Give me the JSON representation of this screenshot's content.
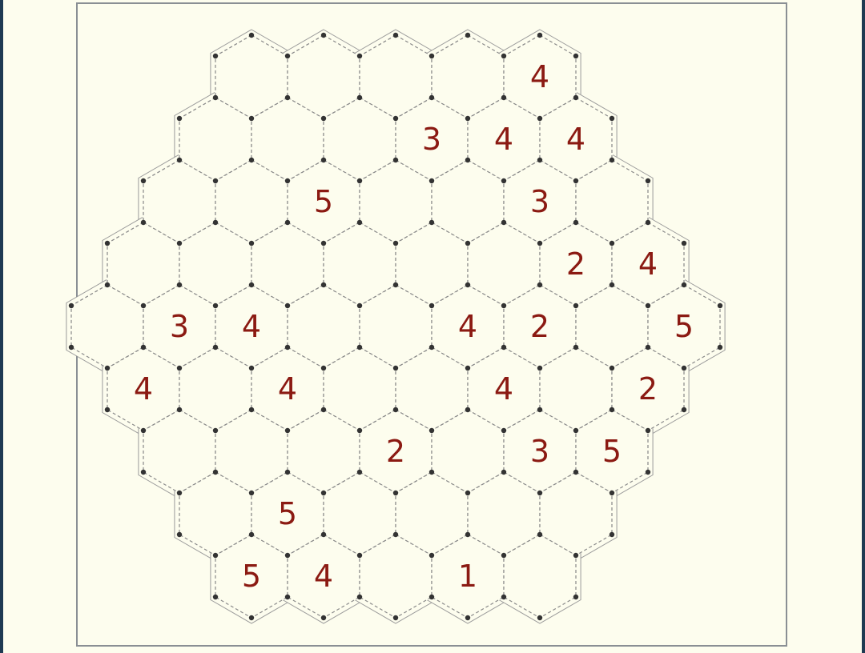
{
  "puzzle": {
    "colors": {
      "background": "#fdfdee",
      "outer_border": "#8a8f94",
      "cell_outline": "#888888",
      "vertex_dot": "#333333",
      "clue_text": "#8b1a12"
    },
    "rows": [
      {
        "offset": 2,
        "cells": [
          "",
          "",
          "",
          "",
          "4"
        ]
      },
      {
        "offset": 1.5,
        "cells": [
          "",
          "",
          "",
          "3",
          "4",
          "4"
        ]
      },
      {
        "offset": 1,
        "cells": [
          "",
          "",
          "5",
          "",
          "",
          "3",
          ""
        ]
      },
      {
        "offset": 0.5,
        "cells": [
          "",
          "",
          "",
          "",
          "",
          "",
          "2",
          "4"
        ]
      },
      {
        "offset": 0,
        "cells": [
          "",
          "3",
          "4",
          "",
          "",
          "4",
          "2",
          "",
          "5"
        ]
      },
      {
        "offset": 0.5,
        "cells": [
          "4",
          "",
          "4",
          "",
          "",
          "4",
          "",
          "2"
        ]
      },
      {
        "offset": 1,
        "cells": [
          "",
          "",
          "",
          "2",
          "",
          "3",
          "5"
        ]
      },
      {
        "offset": 1.5,
        "cells": [
          "",
          "5",
          "",
          "",
          "",
          ""
        ]
      },
      {
        "offset": 2,
        "cells": [
          "5",
          "4",
          "",
          "1",
          ""
        ]
      }
    ]
  }
}
